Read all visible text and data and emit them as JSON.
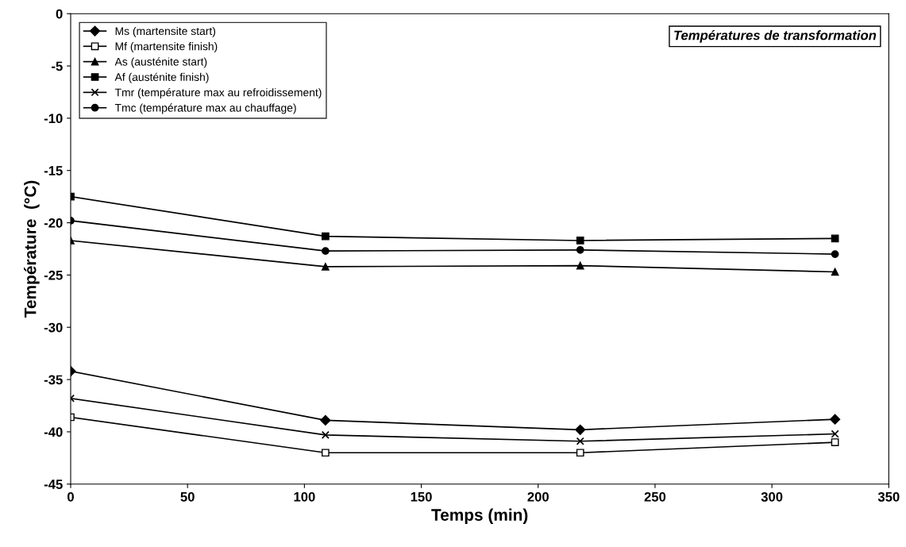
{
  "chart_data": {
    "type": "line",
    "title": "Températures de transformation",
    "xlabel": "Temps (min)",
    "ylabel": "Température  (°C)",
    "x": [
      0,
      109,
      218,
      327
    ],
    "series": [
      {
        "name": "Ms (martensite start)",
        "color": "#000000",
        "marker": "diamond",
        "values": [
          -34.2,
          -38.9,
          -39.8,
          -38.8
        ]
      },
      {
        "name": "Mf (martensite finish)",
        "color": "#000000",
        "marker": "square_open",
        "values": [
          -38.6,
          -42.0,
          -42.0,
          -41.0
        ]
      },
      {
        "name": "As (austénite start)",
        "color": "#000000",
        "marker": "triangle",
        "values": [
          -21.7,
          -24.2,
          -24.1,
          -24.7
        ]
      },
      {
        "name": "Af (austénite finish)",
        "color": "#000000",
        "marker": "square",
        "values": [
          -17.5,
          -21.3,
          -21.7,
          -21.5
        ]
      },
      {
        "name": "Tmr (température max au refroidissement)",
        "color": "#000000",
        "marker": "cross",
        "values": [
          -36.8,
          -40.3,
          -40.9,
          -40.2
        ]
      },
      {
        "name": "Tmc (température max au chauffage)",
        "color": "#000000",
        "marker": "circle",
        "values": [
          -19.8,
          -22.7,
          -22.6,
          -23.0
        ]
      }
    ],
    "xlim": [
      0,
      350
    ],
    "xticks": [
      0,
      50,
      100,
      150,
      200,
      250,
      300,
      350
    ],
    "ylim": [
      -45,
      0
    ],
    "yticks": [
      -45,
      -40,
      -35,
      -30,
      -25,
      -20,
      -15,
      -10,
      -5,
      0
    ],
    "grid": false,
    "legend": "top left",
    "line_style": "solid"
  }
}
